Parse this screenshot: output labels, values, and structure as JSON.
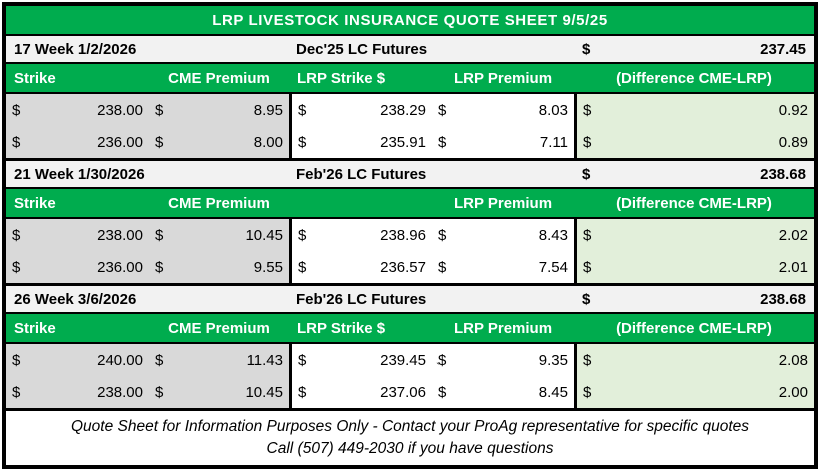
{
  "title": "LRP LIVESTOCK INSURANCE QUOTE SHEET 9/5/25",
  "currency_symbol": "$",
  "colors": {
    "header_green": "#00AC4E",
    "cme_gray": "#D9D9D9",
    "difference_light_green": "#E2EFDA",
    "week_row_gray": "#F2F2F2",
    "border_black": "#000000"
  },
  "sections": [
    {
      "week_label": "17 Week 1/2/2026",
      "futures_label": "Dec'25 LC Futures",
      "futures_value": "237.45",
      "headers": {
        "strike": "Strike",
        "cme": "CME Premium",
        "lrp_strike": "LRP Strike $",
        "lrp_premium": "LRP Premium",
        "difference": "(Difference CME-LRP)"
      },
      "rows": [
        {
          "strike": "238.00",
          "cme": "8.95",
          "lrp_strike": "238.29",
          "lrp_premium": "8.03",
          "difference": "0.92"
        },
        {
          "strike": "236.00",
          "cme": "8.00",
          "lrp_strike": "235.91",
          "lrp_premium": "7.11",
          "difference": "0.89"
        }
      ]
    },
    {
      "week_label": "21 Week 1/30/2026",
      "futures_label": "Feb'26 LC Futures",
      "futures_value": "238.68",
      "headers": {
        "strike": "Strike",
        "cme": "CME Premium",
        "lrp_strike": "",
        "lrp_premium": "LRP Premium",
        "difference": "(Difference CME-LRP)"
      },
      "rows": [
        {
          "strike": "238.00",
          "cme": "10.45",
          "lrp_strike": "238.96",
          "lrp_premium": "8.43",
          "difference": "2.02"
        },
        {
          "strike": "236.00",
          "cme": "9.55",
          "lrp_strike": "236.57",
          "lrp_premium": "7.54",
          "difference": "2.01"
        }
      ]
    },
    {
      "week_label": "26 Week 3/6/2026",
      "futures_label": "Feb'26 LC Futures",
      "futures_value": "238.68",
      "headers": {
        "strike": "Strike",
        "cme": "CME Premium",
        "lrp_strike": "LRP Strike $",
        "lrp_premium": "LRP Premium",
        "difference": "(Difference CME-LRP)"
      },
      "rows": [
        {
          "strike": "240.00",
          "cme": "11.43",
          "lrp_strike": "239.45",
          "lrp_premium": "9.35",
          "difference": "2.08"
        },
        {
          "strike": "238.00",
          "cme": "10.45",
          "lrp_strike": "237.06",
          "lrp_premium": "8.45",
          "difference": "2.00"
        }
      ]
    }
  ],
  "footer": {
    "line1": "Quote Sheet for Information Purposes Only - Contact your ProAg representative for specific quotes",
    "line2": "Call (507) 449-2030 if you have questions"
  },
  "artifact_tick": "`"
}
